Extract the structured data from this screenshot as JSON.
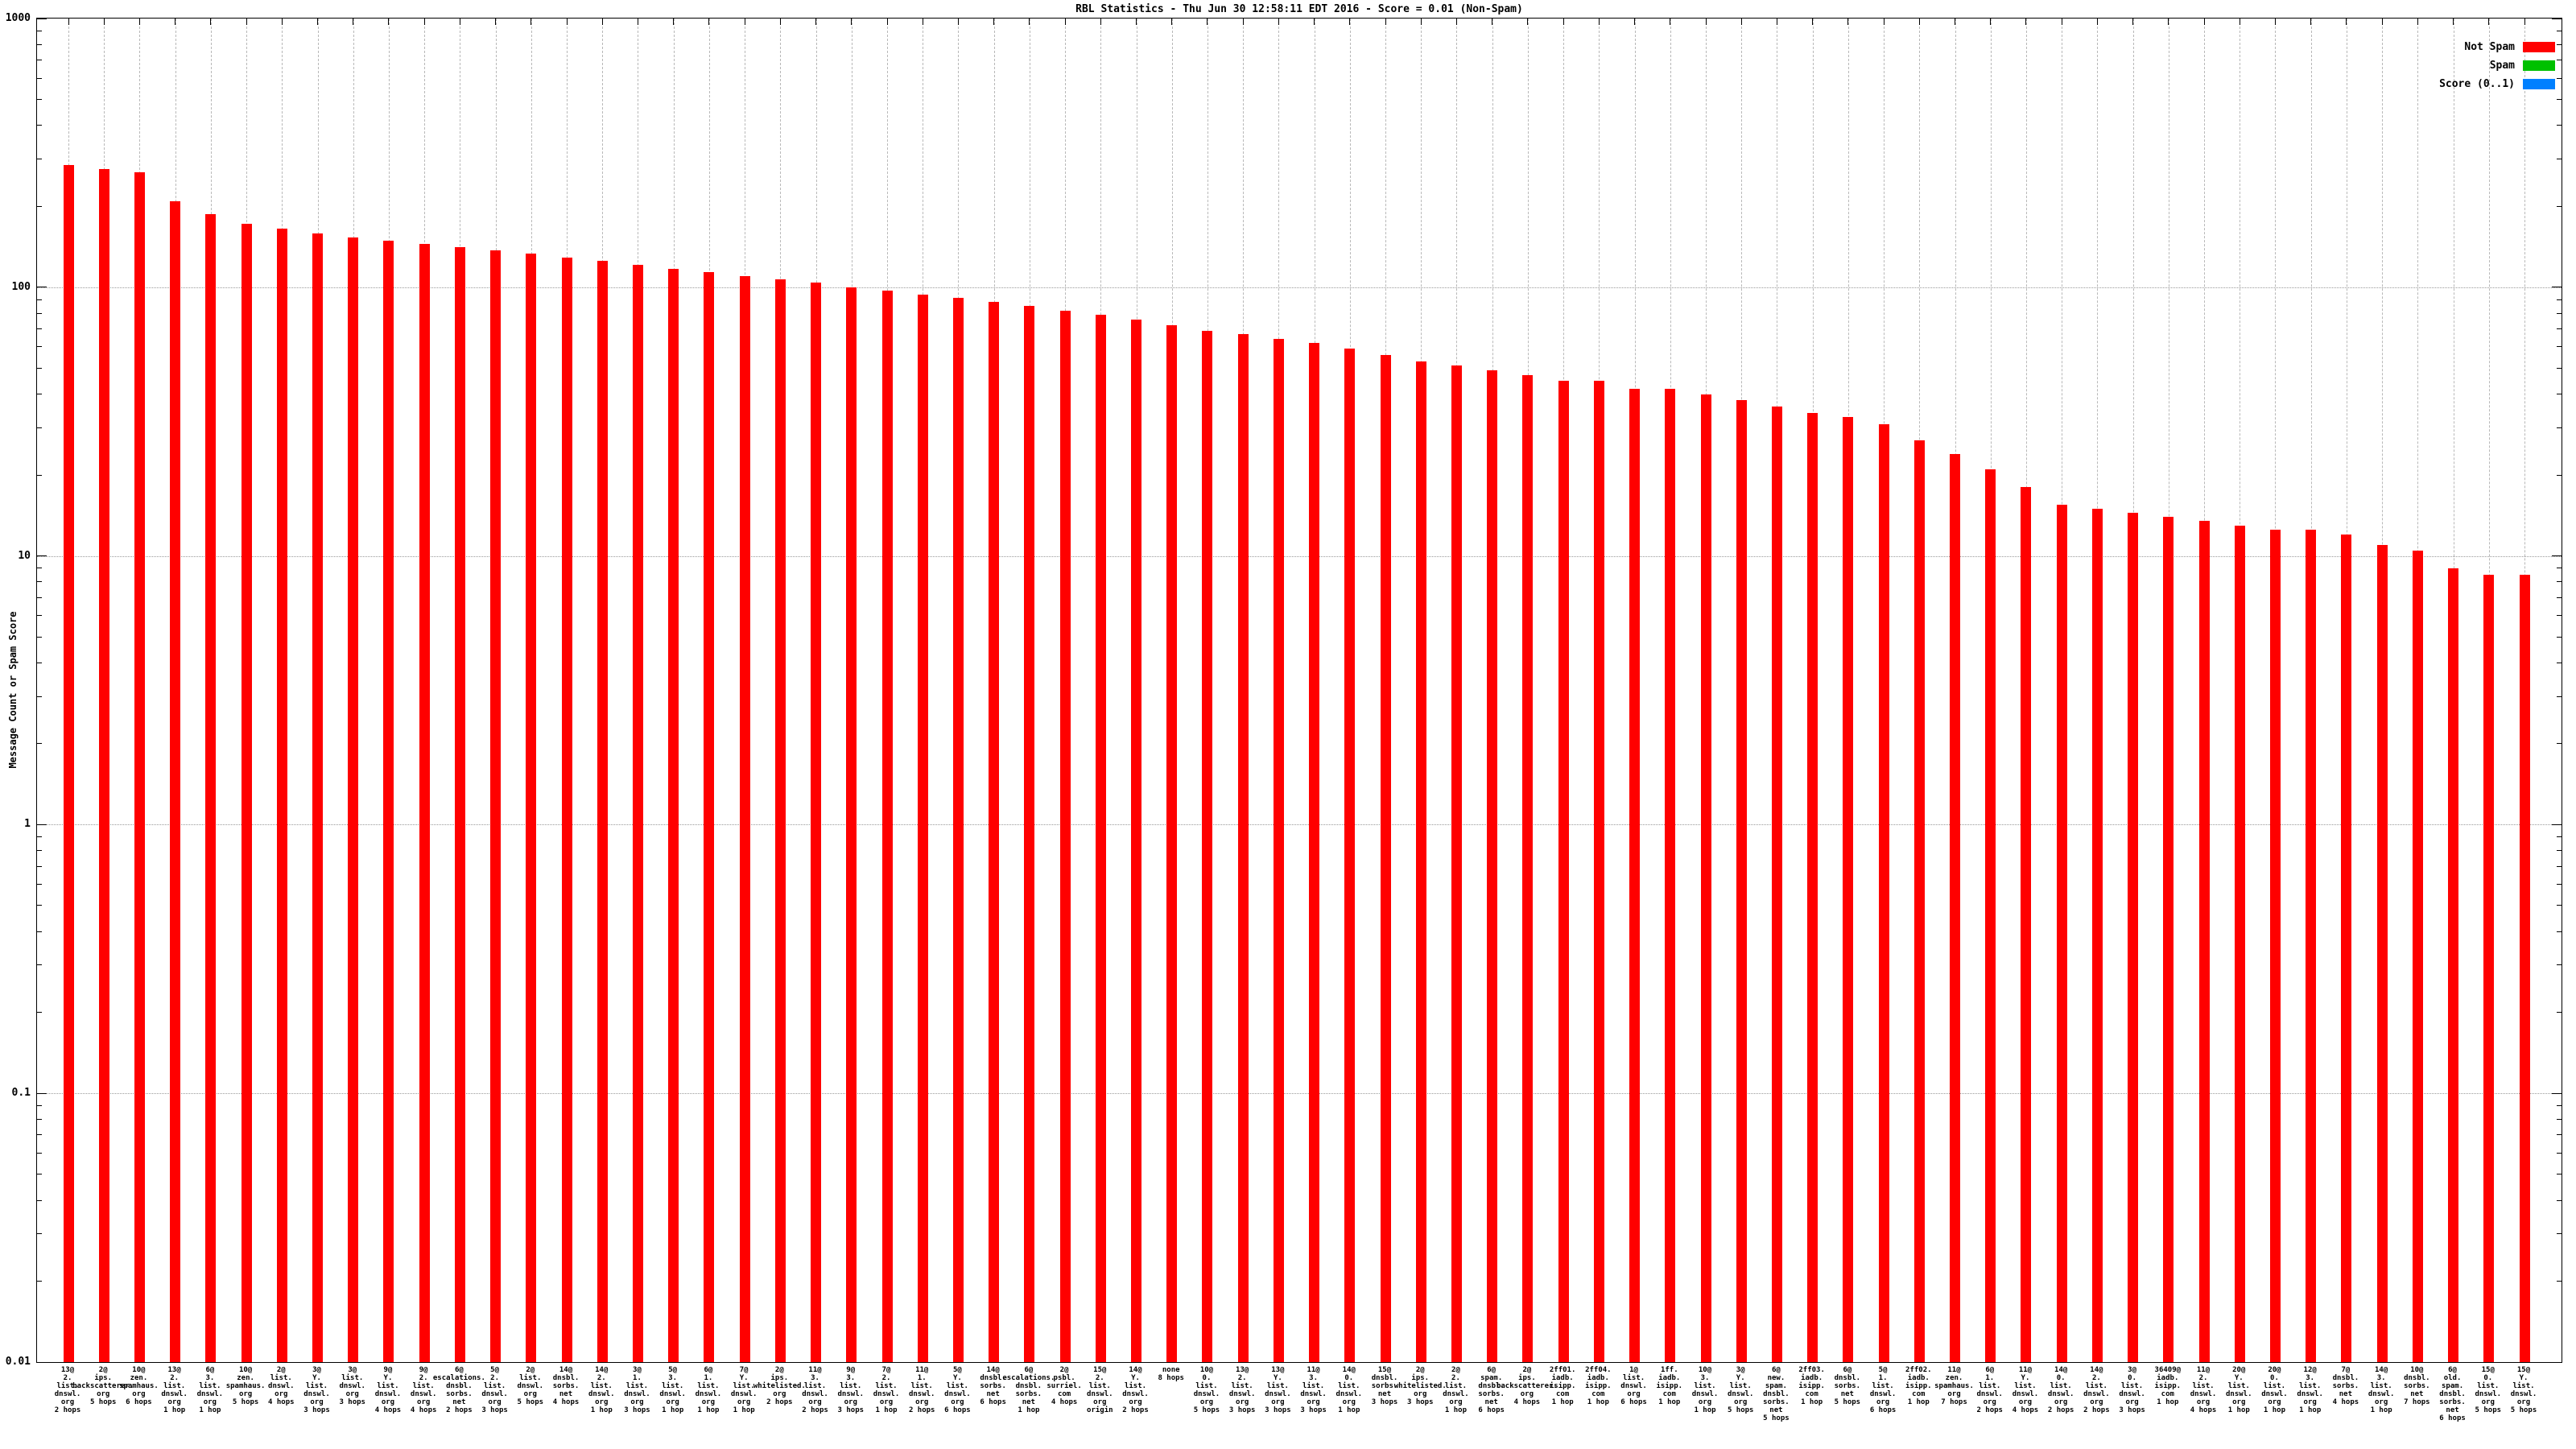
{
  "title": "RBL Statistics - Thu Jun 30 12:58:11 EDT 2016 - Score = 0.01 (Non-Spam)",
  "y_axis": {
    "label": "Message Count or Spam Score",
    "scale": "log",
    "tick_labels": [
      "1000",
      "100",
      "10",
      "1",
      "0.1",
      "0.01"
    ],
    "min": 0.01,
    "max": 1000
  },
  "legend": {
    "position": "top-right",
    "items": [
      {
        "label": "Not Spam",
        "color": "#ff0000"
      },
      {
        "label": "Spam",
        "color": "#00c000"
      },
      {
        "label": "Score (0..1)",
        "color": "#0080ff"
      }
    ]
  },
  "colors": {
    "bar": "#ff0000",
    "axis": "#000000",
    "x_grid": "#b8b8b8",
    "y_grid": "#9a9a9a",
    "background": "#ffffff"
  },
  "chart_data": {
    "type": "bar",
    "title": "RBL Statistics - Thu Jun 30 12:58:11 EDT 2016 - Score = 0.01 (Non-Spam)",
    "ylabel": "Message Count or Spam Score",
    "ylim": [
      0.01,
      1000
    ],
    "yscale": "log",
    "grid": true,
    "series_name": "Not Spam",
    "bars": [
      {
        "label_lines": [
          "13@",
          "2.",
          "list.",
          "dnswl.",
          "org",
          "2 hops"
        ],
        "value": 285
      },
      {
        "label_lines": [
          "2@",
          "ips.",
          "backscatterer.",
          "org",
          "5 hops"
        ],
        "value": 276
      },
      {
        "label_lines": [
          "10@",
          "zen.",
          "spamhaus.",
          "org",
          "6 hops"
        ],
        "value": 267
      },
      {
        "label_lines": [
          "13@",
          "2.",
          "list.",
          "dnswl.",
          "org",
          "1 hop"
        ],
        "value": 209
      },
      {
        "label_lines": [
          "6@",
          "3.",
          "list.",
          "dnswl.",
          "org",
          "1 hop"
        ],
        "value": 187
      },
      {
        "label_lines": [
          "10@",
          "zen.",
          "spamhaus.",
          "org",
          "5 hops"
        ],
        "value": 172
      },
      {
        "label_lines": [
          "2@",
          "list.",
          "dnswl.",
          "org",
          "4 hops"
        ],
        "value": 165
      },
      {
        "label_lines": [
          "3@",
          "Y.",
          "list.",
          "dnswl.",
          "org",
          "3 hops"
        ],
        "value": 158
      },
      {
        "label_lines": [
          "3@",
          "list.",
          "dnswl.",
          "org",
          "3 hops"
        ],
        "value": 153
      },
      {
        "label_lines": [
          "9@",
          "Y.",
          "list.",
          "dnswl.",
          "org",
          "4 hops"
        ],
        "value": 149
      },
      {
        "label_lines": [
          "9@",
          "2.",
          "list.",
          "dnswl.",
          "org",
          "4 hops"
        ],
        "value": 145
      },
      {
        "label_lines": [
          "6@",
          "escalations.",
          "dnsbl.",
          "sorbs.",
          "net",
          "2 hops"
        ],
        "value": 141
      },
      {
        "label_lines": [
          "5@",
          "2.",
          "list.",
          "dnswl.",
          "org",
          "3 hops"
        ],
        "value": 137
      },
      {
        "label_lines": [
          "2@",
          "list.",
          "dnswl.",
          "org",
          "5 hops"
        ],
        "value": 133
      },
      {
        "label_lines": [
          "14@",
          "dnsbl.",
          "sorbs.",
          "net",
          "4 hops"
        ],
        "value": 129
      },
      {
        "label_lines": [
          "14@",
          "2.",
          "list.",
          "dnswl.",
          "org",
          "1 hop"
        ],
        "value": 125
      },
      {
        "label_lines": [
          "3@",
          "1.",
          "list.",
          "dnswl.",
          "org",
          "3 hops"
        ],
        "value": 121
      },
      {
        "label_lines": [
          "5@",
          "3.",
          "list.",
          "dnswl.",
          "org",
          "1 hop"
        ],
        "value": 117
      },
      {
        "label_lines": [
          "6@",
          "1.",
          "list.",
          "dnswl.",
          "org",
          "1 hop"
        ],
        "value": 114
      },
      {
        "label_lines": [
          "7@",
          "Y.",
          "list.",
          "dnswl.",
          "org",
          "1 hop"
        ],
        "value": 110
      },
      {
        "label_lines": [
          "2@",
          "ips.",
          "whitelisted.",
          "org",
          "2 hops"
        ],
        "value": 107
      },
      {
        "label_lines": [
          "11@",
          "3.",
          "list.",
          "dnswl.",
          "org",
          "2 hops"
        ],
        "value": 104
      },
      {
        "label_lines": [
          "9@",
          "3.",
          "list.",
          "dnswl.",
          "org",
          "3 hops"
        ],
        "value": 100
      },
      {
        "label_lines": [
          "7@",
          "2.",
          "list.",
          "dnswl.",
          "org",
          "1 hop"
        ],
        "value": 97
      },
      {
        "label_lines": [
          "11@",
          "1.",
          "list.",
          "dnswl.",
          "org",
          "2 hops"
        ],
        "value": 94
      },
      {
        "label_lines": [
          "5@",
          "Y.",
          "list.",
          "dnswl.",
          "org",
          "6 hops"
        ],
        "value": 91
      },
      {
        "label_lines": [
          "14@",
          "dnsbl.",
          "sorbs.",
          "net",
          "6 hops"
        ],
        "value": 88
      },
      {
        "label_lines": [
          "6@",
          "escalations.",
          "dnsbl.",
          "sorbs.",
          "net",
          "1 hop"
        ],
        "value": 85
      },
      {
        "label_lines": [
          "2@",
          "psbl.",
          "surriel.",
          "com",
          "4 hops"
        ],
        "value": 82
      },
      {
        "label_lines": [
          "15@",
          "2.",
          "list.",
          "dnswl.",
          "org",
          "origin"
        ],
        "value": 79
      },
      {
        "label_lines": [
          "14@",
          "Y.",
          "list.",
          "dnswl.",
          "org",
          "2 hops"
        ],
        "value": 76
      },
      {
        "label_lines": [
          "none",
          "8 hops"
        ],
        "value": 72
      },
      {
        "label_lines": [
          "10@",
          "0.",
          "list.",
          "dnswl.",
          "org",
          "5 hops"
        ],
        "value": 69
      },
      {
        "label_lines": [
          "13@",
          "2.",
          "list.",
          "dnswl.",
          "org",
          "3 hops"
        ],
        "value": 67
      },
      {
        "label_lines": [
          "13@",
          "Y.",
          "list.",
          "dnswl.",
          "org",
          "3 hops"
        ],
        "value": 64
      },
      {
        "label_lines": [
          "11@",
          "3.",
          "list.",
          "dnswl.",
          "org",
          "3 hops"
        ],
        "value": 62
      },
      {
        "label_lines": [
          "14@",
          "0.",
          "list.",
          "dnswl.",
          "org",
          "1 hop"
        ],
        "value": 59
      },
      {
        "label_lines": [
          "15@",
          "dnsbl.",
          "sorbs.",
          "net",
          "3 hops"
        ],
        "value": 56
      },
      {
        "label_lines": [
          "2@",
          "ips.",
          "whitelisted.",
          "org",
          "3 hops"
        ],
        "value": 53
      },
      {
        "label_lines": [
          "2@",
          "2.",
          "list.",
          "dnswl.",
          "org",
          "1 hop"
        ],
        "value": 51
      },
      {
        "label_lines": [
          "6@",
          "spam.",
          "dnsbl.",
          "sorbs.",
          "net",
          "6 hops"
        ],
        "value": 49
      },
      {
        "label_lines": [
          "2@",
          "ips.",
          "backscatterer.",
          "org",
          "4 hops"
        ],
        "value": 47
      },
      {
        "label_lines": [
          "2ff01.",
          "iadb.",
          "isipp.",
          "com",
          "1 hop"
        ],
        "value": 45
      },
      {
        "label_lines": [
          "2ff04.",
          "iadb.",
          "isipp.",
          "com",
          "1 hop"
        ],
        "value": 45
      },
      {
        "label_lines": [
          "1@",
          "list.",
          "dnswl.",
          "org",
          "6 hops"
        ],
        "value": 42
      },
      {
        "label_lines": [
          "1ff.",
          "iadb.",
          "isipp.",
          "com",
          "1 hop"
        ],
        "value": 42
      },
      {
        "label_lines": [
          "10@",
          "3.",
          "list.",
          "dnswl.",
          "org",
          "1 hop"
        ],
        "value": 40
      },
      {
        "label_lines": [
          "3@",
          "Y.",
          "list.",
          "dnswl.",
          "org",
          "5 hops"
        ],
        "value": 38
      },
      {
        "label_lines": [
          "6@",
          "new.",
          "spam.",
          "dnsbl.",
          "sorbs.",
          "net",
          "5 hops"
        ],
        "value": 36
      },
      {
        "label_lines": [
          "2ff03.",
          "iadb.",
          "isipp.",
          "com",
          "1 hop"
        ],
        "value": 34
      },
      {
        "label_lines": [
          "6@",
          "dnsbl.",
          "sorbs.",
          "net",
          "5 hops"
        ],
        "value": 33
      },
      {
        "label_lines": [
          "5@",
          "1.",
          "list.",
          "dnswl.",
          "org",
          "6 hops"
        ],
        "value": 31
      },
      {
        "label_lines": [
          "2ff02.",
          "iadb.",
          "isipp.",
          "com",
          "1 hop"
        ],
        "value": 27
      },
      {
        "label_lines": [
          "11@",
          "zen.",
          "spamhaus.",
          "org",
          "7 hops"
        ],
        "value": 24
      },
      {
        "label_lines": [
          "6@",
          "1.",
          "list.",
          "dnswl.",
          "org",
          "2 hops"
        ],
        "value": 21
      },
      {
        "label_lines": [
          "11@",
          "Y.",
          "list.",
          "dnswl.",
          "org",
          "4 hops"
        ],
        "value": 18
      },
      {
        "label_lines": [
          "14@",
          "0.",
          "list.",
          "dnswl.",
          "org",
          "2 hops"
        ],
        "value": 15.5
      },
      {
        "label_lines": [
          "14@",
          "2.",
          "list.",
          "dnswl.",
          "org",
          "2 hops"
        ],
        "value": 15
      },
      {
        "label_lines": [
          "3@",
          "0.",
          "list.",
          "dnswl.",
          "org",
          "3 hops"
        ],
        "value": 14.5
      },
      {
        "label_lines": [
          "36409@",
          "iadb.",
          "isipp.",
          "com",
          "1 hop"
        ],
        "value": 14
      },
      {
        "label_lines": [
          "11@",
          "2.",
          "list.",
          "dnswl.",
          "org",
          "4 hops"
        ],
        "value": 13.5
      },
      {
        "label_lines": [
          "20@",
          "Y.",
          "list.",
          "dnswl.",
          "org",
          "1 hop"
        ],
        "value": 13
      },
      {
        "label_lines": [
          "20@",
          "0.",
          "list.",
          "dnswl.",
          "org",
          "1 hop"
        ],
        "value": 12.5
      },
      {
        "label_lines": [
          "12@",
          "3.",
          "list.",
          "dnswl.",
          "org",
          "1 hop"
        ],
        "value": 12.5
      },
      {
        "label_lines": [
          "7@",
          "dnsbl.",
          "sorbs.",
          "net",
          "4 hops"
        ],
        "value": 12
      },
      {
        "label_lines": [
          "14@",
          "3.",
          "list.",
          "dnswl.",
          "org",
          "1 hop"
        ],
        "value": 11
      },
      {
        "label_lines": [
          "10@",
          "dnsbl.",
          "sorbs.",
          "net",
          "7 hops"
        ],
        "value": 10.5
      },
      {
        "label_lines": [
          "6@",
          "old.",
          "spam.",
          "dnsbl.",
          "sorbs.",
          "net",
          "6 hops"
        ],
        "value": 9
      },
      {
        "label_lines": [
          "15@",
          "0.",
          "list.",
          "dnswl.",
          "org",
          "5 hops"
        ],
        "value": 8.5
      },
      {
        "label_lines": [
          "15@",
          "Y.",
          "list.",
          "dnswl.",
          "org",
          "5 hops"
        ],
        "value": 8.5
      }
    ]
  }
}
